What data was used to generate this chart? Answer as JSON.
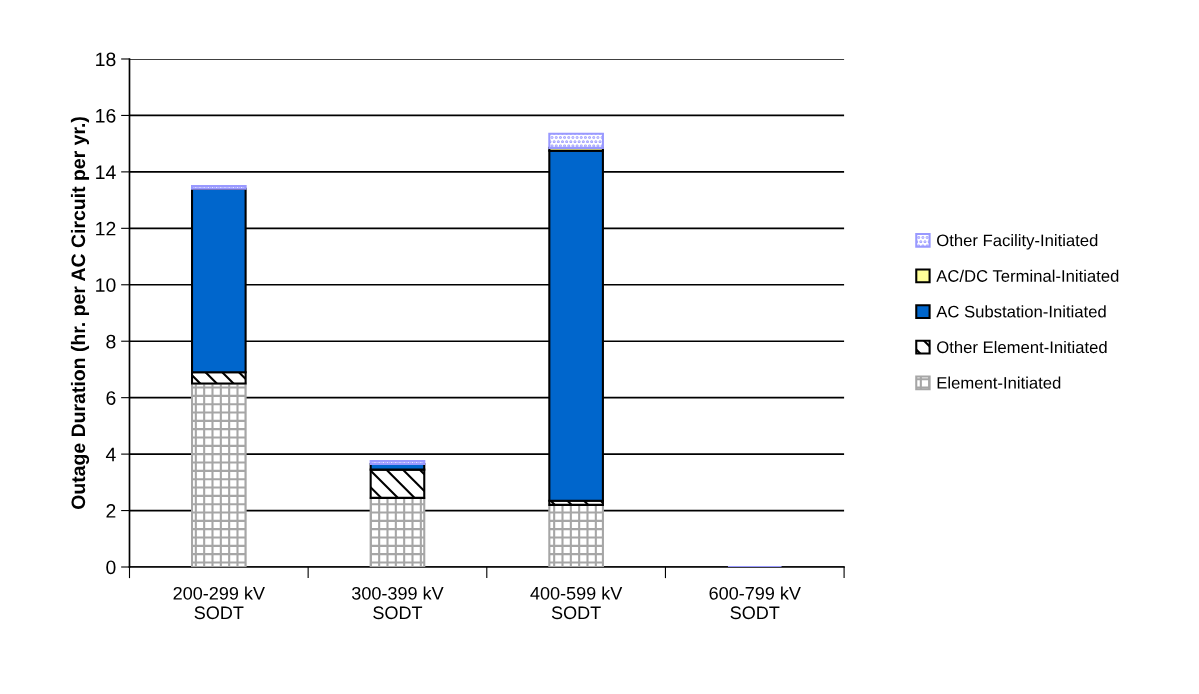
{
  "chart_data": {
    "type": "bar",
    "stacked": true,
    "ylabel": "Outage Duration (hr. per AC Circuit per yr.)",
    "categories": [
      "200-299 kV\nSODT",
      "300-399 kV\nSODT",
      "400-599 kV\nSODT",
      "600-799 kV\nSODT"
    ],
    "series": [
      {
        "name": "Element-Initiated",
        "color": "#a6a6a6",
        "values": [
          6.5,
          2.45,
          2.2,
          0
        ]
      },
      {
        "name": "Other Element-Initiated",
        "color": "#000000",
        "values": [
          0.4,
          1.0,
          0.15,
          0
        ]
      },
      {
        "name": "AC Substation-Initiated",
        "color": "#0066cc",
        "values": [
          6.5,
          0.2,
          12.4,
          0
        ]
      },
      {
        "name": "AC/DC Terminal-Initiated",
        "color": "#ffff99",
        "values": [
          0,
          0,
          0.1,
          0
        ]
      },
      {
        "name": "Other Facility-Initiated",
        "color": "#9999ff",
        "values": [
          0.1,
          0.1,
          0.5,
          0
        ]
      }
    ],
    "ylim": [
      0,
      18
    ],
    "yticks": [
      0,
      2,
      4,
      6,
      8,
      10,
      12,
      14,
      16,
      18
    ],
    "grid": "y",
    "legend": "right"
  }
}
